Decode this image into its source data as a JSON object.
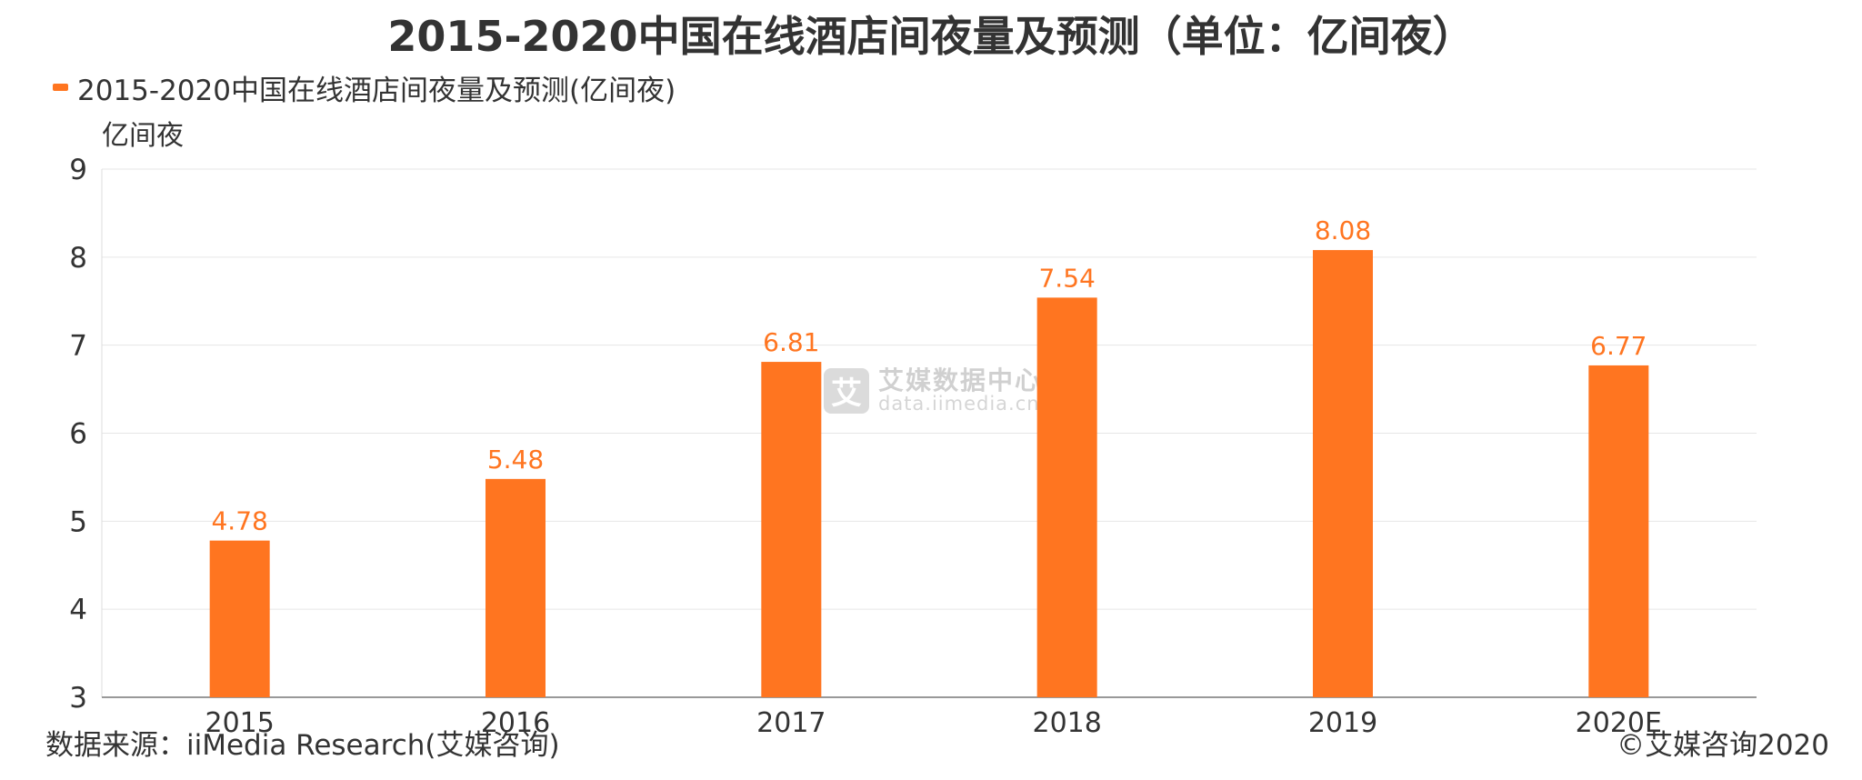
{
  "title": "2015-2020中国在线酒店间夜量及预测（单位：亿间夜）",
  "legend": {
    "label": "2015-2020中国在线酒店间夜量及预测(亿间夜)"
  },
  "y_unit": "亿间夜",
  "source": "数据来源：iiMedia Research(艾媒咨询)",
  "copyright": "©艾媒咨询2020",
  "watermark": {
    "logo_char": "艾",
    "name": "艾媒数据中心",
    "url": "data.iimedia.cn"
  },
  "colors": {
    "bar": "#ff7520",
    "label": "#ff7520",
    "grid": "#e6e6e6",
    "axis": "#999999",
    "text": "#333333"
  },
  "chart_data": {
    "type": "bar",
    "categories": [
      "2015",
      "2016",
      "2017",
      "2018",
      "2019",
      "2020E"
    ],
    "series": [
      {
        "name": "2015-2020中国在线酒店间夜量及预测(亿间夜)",
        "values": [
          4.78,
          5.48,
          6.81,
          7.54,
          8.08,
          6.77
        ]
      }
    ],
    "value_labels": [
      "4.78",
      "5.48",
      "6.81",
      "7.54",
      "8.08",
      "6.77"
    ],
    "title": "2015-2020中国在线酒店间夜量及预测（单位：亿间夜）",
    "xlabel": "",
    "ylabel": "亿间夜",
    "ylim": [
      3,
      9
    ],
    "yticks": [
      "3",
      "4",
      "5",
      "6",
      "7",
      "8",
      "9"
    ],
    "grid": true,
    "legend_position": "top-left"
  }
}
